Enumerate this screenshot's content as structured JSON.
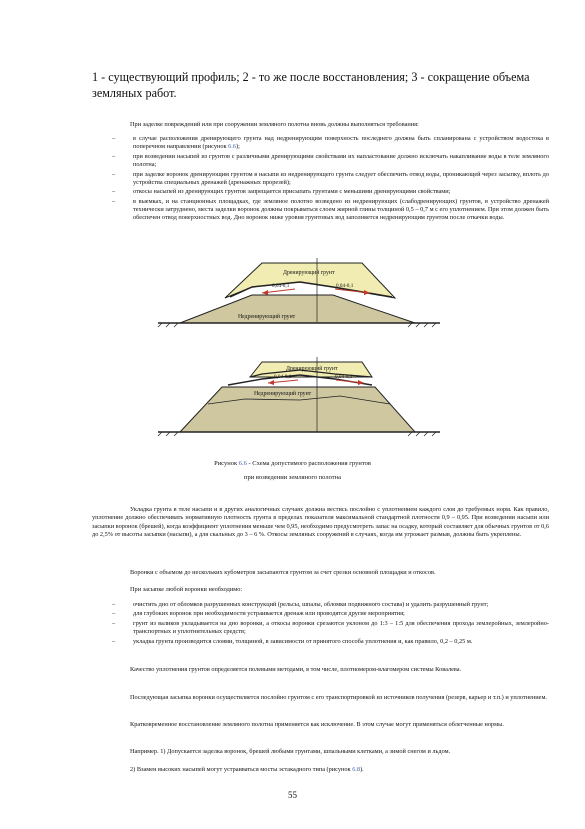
{
  "heading": "1 - существующий профиль; 2 - то же после восстановления; 3 - сокращение объема земляных работ.",
  "intro": "При заделке повреждений или при сооружении земляного полотна вновь должны выполняться требования:",
  "bullets1": [
    {
      "text": "в случае расположения дренирующего грунта над недренирующим поверхность последнего должна быть спланирована с устройством водостока в поперечном направлении (рисунок ",
      "ref": "6.6",
      "tail": ");"
    },
    {
      "text": "при возведении насыпей из грунтов с различными дренирующими свойствами их напластование должно исключать накапливание воды в теле земляного полотна;",
      "ref": "",
      "tail": ""
    },
    {
      "text": "при заделке воронок дренирующим грунтом в насыпи из недренирующего грунта следует обеспечить отвод воды, проникающей через засыпку, вплоть до устройства специальных дренажей (дренажных прорезей);",
      "ref": "",
      "tail": ""
    },
    {
      "text": "откосы насыпей из дренирующих грунтов запрещается присыпать грунтами с меньшими дренирующими свойствами;",
      "ref": "",
      "tail": ""
    },
    {
      "text": "в выемках, и на станционных площадках, где земляное полотно возведено из недренирующих (слабодренирующих) грунтов, в устройство дренажей технически затруднено, места заделки воронок должны покрываться слоем жирной глины толщиной 0,5 – 0,7 м с его уплотнением. При этом должен быть обеспечен отвод поверхностных вод. Дно воронок ниже уровня грунтовых вод заполняется недренирующим грунтом после откачки воды.",
      "ref": "",
      "tail": ""
    }
  ],
  "figure": {
    "top_upper_label": "Дренирующий грунт",
    "top_slope_left": "0,04-0,1",
    "top_slope_right": "0,04-0,1",
    "top_lower_label": "Недренирующий грунт",
    "bottom_upper_label": "Дренирующий грунт",
    "bottom_slope_left": "0,04-0,1",
    "bottom_slope_right": "0,04-0,1",
    "bottom_lower_label": "Недренирующий грунт"
  },
  "caption_line1_prefix": "Рисунок ",
  "caption_ref": "6.6",
  "caption_line1_suffix": " - Схема допустимого расположения грунтов",
  "caption_line2": "при возведении земляного полотна",
  "para1": "Укладка грунта в теле насыпи и в других аналогичных случаях должна вестись послойно с уплотнением каждого слоя до требуемых норм. Как правило, уплотнение должно обеспечивать нормативную плотность грунта в пределах показателя максимальной стандартной плотности 0,9 – 0,95. При возведении насыпи или засыпки воронок (брешей), когда коэффициент уплотнения меньше чем 0,95, необходимо предусмотреть запас на осадку, который составляет для обычных грунтов от 0,6 до 2,5% от высоты засыпки (насыпи), а для скальных до 3 – 6 %. Откосы земляных сооружений в случаях, когда им угрожает размыв, должны быть укреплены.",
  "para2": "Воронки с объемом до нескольких кубометров засыпаются грунтом за счет срезки основной площадки и откосов.",
  "para3": "При засыпке любой воронки необходимо:",
  "bullets2": [
    "очистить дно от обломков разрушенных конструкций (рельсы, шпалы, обломки подвижного состава) и удалить разрушенный грунт;",
    "для глубоких воронок при необходимости устраивается дренаж или проводятся другие мероприятия;",
    "грунт из валиков укладывается на дно воронки, а откосы воронки срезаются уклоном до 1:3 – 1:5 для обеспечения прохода землеройных, землеройно-транспортных и уплотнительных средств;",
    "укладка грунта производится слоями, толщиной, в зависимости от принятого способа уплотнения и, как правило, 0,2 – 0,25 м."
  ],
  "para4": "Качество уплотнения грунтов определяется полевыми методами, в том числе, плотномером-влагомером системы Ковалева.",
  "para5": "Последующая засыпка воронки осуществляется послойно грунтом с его транспортировкой из источников получения (резерв, карьер и т.п.) и уплотнением.",
  "para6": "Кратковременное восстановление земляного полотна применяется как исключение. В этом случае могут применяться облегченные нормы.",
  "para7": "Например. 1) Допускается заделка воронок, брешей любыми грунтами, шпальными клетками, а зимой снегом и льдом.",
  "para8_prefix": "2) Взамен высоких насыпей могут устраиваться мосты эстакадного типа (рисунок ",
  "para8_ref": "6.8",
  "para8_suffix": ").",
  "page_number": "55",
  "colors": {
    "drain": "#f0ecb2",
    "nondrain": "#cfc7a0",
    "link": "#3a5fa8",
    "arrow": "#c0392b"
  }
}
